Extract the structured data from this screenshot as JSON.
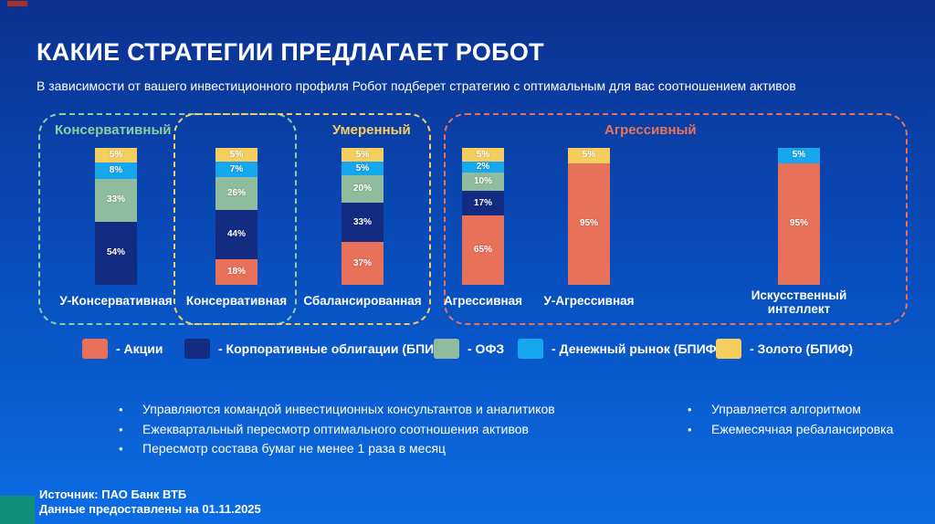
{
  "slide": {
    "title": "КАКИЕ СТРАТЕГИИ ПРЕДЛАГАЕТ РОБОТ",
    "subtitle": "В зависимости от вашего инвестиционного профиля Робот подберет стратегию с оптимальным для вас соотношением активов",
    "source_line1": "Источник: ПАО Банк ВТБ",
    "source_line2": "Данные предоставлены на 01.11.2025"
  },
  "bullets_left": [
    "Управляются командой инвестиционных консультантов и аналитиков",
    "Ежеквартальный пересмотр оптимального соотношения активов",
    "Пересмотр состава бумаг не менее 1 раза в месяц"
  ],
  "bullets_right": [
    "Управляется алгоритмом",
    "Ежемесячная ребалансировка"
  ],
  "chart_data": {
    "type": "bar",
    "stacked": true,
    "value_unit": "%",
    "ylim": [
      0,
      100
    ],
    "grid": false,
    "legend_position": "bottom",
    "series": [
      {
        "name": "Акции",
        "color": "#E8715A"
      },
      {
        "name": "Корпоративные облигации (БПИФ)",
        "color": "#142B82"
      },
      {
        "name": "ОФЗ",
        "color": "#8FBC9D"
      },
      {
        "name": "Денежный рынок (БПИФ)",
        "color": "#17A7EF"
      },
      {
        "name": "Золото (БПИФ)",
        "color": "#F6CE60"
      }
    ],
    "legend": [
      "- Акции",
      "- Корпоративные облигации (БПИФ)",
      "- ОФЗ",
      "- Денежный рынок (БПИФ)",
      "- Золото (БПИФ)"
    ],
    "groups": [
      {
        "label": "Консервативный",
        "color": "#8FCF9F",
        "bars": [
          "У-Консервативная",
          "Консервативная"
        ]
      },
      {
        "label": "Умеренный",
        "color": "#F6CE60",
        "bars": [
          "Консервативная",
          "Сбалансированная"
        ]
      },
      {
        "label": "Агрессивный",
        "color": "#E8715A",
        "bars": [
          "Агрессивная",
          "У-Агрессивная",
          "Искусственный интеллект"
        ]
      }
    ],
    "bars": [
      {
        "label": "У-Консервативная",
        "values": [
          0,
          54,
          33,
          8,
          5
        ]
      },
      {
        "label": "Консервативная",
        "values": [
          18,
          44,
          26,
          7,
          5
        ]
      },
      {
        "label": "Сбалансированная",
        "values": [
          37,
          33,
          20,
          5,
          5
        ]
      },
      {
        "label": "Агрессивная",
        "values": [
          65,
          17,
          10,
          2,
          5
        ]
      },
      {
        "label": "У-Агрессивная",
        "values": [
          95,
          0,
          0,
          0,
          5
        ]
      },
      {
        "label": "Искусственный интеллект",
        "values": [
          95,
          0,
          0,
          5,
          0
        ]
      }
    ]
  },
  "colors": {
    "background_top": "#0c3190",
    "background_bottom": "#0b6de4",
    "corner_teal": "#0f8e79",
    "corner_red": "#a43227",
    "text": "#ffffff"
  }
}
